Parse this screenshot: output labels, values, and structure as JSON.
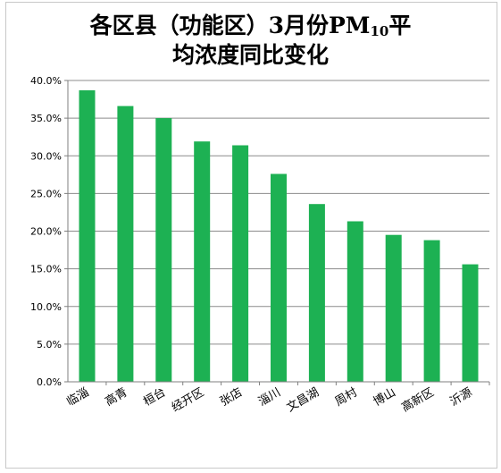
{
  "chart_data": {
    "type": "bar",
    "title_line1": "各区县（功能区）3月份PM",
    "title_sub": "10",
    "title_line1_end": "平",
    "title_line2": "均浓度同比变化",
    "categories": [
      "临淄",
      "高青",
      "桓台",
      "经开区",
      "张店",
      "淄川",
      "文昌湖",
      "周村",
      "博山",
      "高新区",
      "沂源"
    ],
    "values": [
      38.7,
      36.6,
      35.0,
      31.9,
      31.4,
      27.6,
      23.6,
      21.3,
      19.5,
      18.8,
      15.6
    ],
    "y_ticks": [
      "0.0%",
      "5.0%",
      "10.0%",
      "15.0%",
      "20.0%",
      "25.0%",
      "30.0%",
      "35.0%",
      "40.0%"
    ],
    "ylim": [
      0,
      40
    ],
    "y_step": 5,
    "grid": true,
    "legend": "none",
    "bar_color": "#1db153",
    "grid_color": "#8c8c8c",
    "axis_color": "#7f7f7f"
  }
}
